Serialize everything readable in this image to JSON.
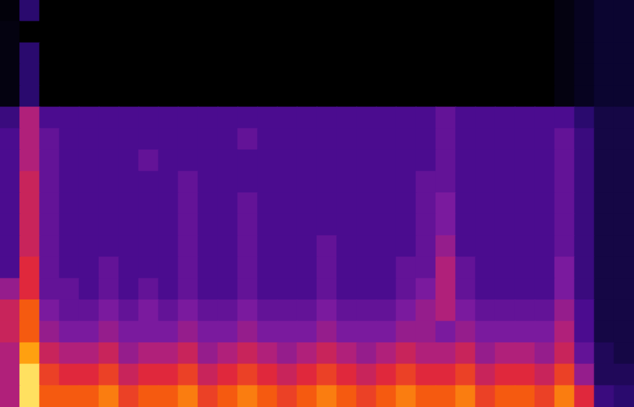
{
  "chart_data": {
    "type": "heatmap",
    "tick_labels": false,
    "color_range": [
      0,
      10
    ],
    "cells": [
      [
        0.3,
        3,
        0,
        0,
        0,
        0,
        0,
        0,
        0,
        0,
        0,
        0,
        0,
        0,
        0,
        0,
        0,
        0,
        0,
        0,
        0,
        0,
        0,
        0,
        0,
        0,
        0,
        0,
        0.5,
        1,
        1.5,
        1.5
      ],
      [
        0.5,
        0,
        0,
        0,
        0,
        0,
        0,
        0,
        0,
        0,
        0,
        0,
        0,
        0,
        0,
        0,
        0,
        0,
        0,
        0,
        0,
        0,
        0,
        0,
        0,
        0,
        0,
        0,
        0.5,
        1,
        1.5,
        1.5
      ],
      [
        0.5,
        3,
        0,
        0,
        0,
        0,
        0,
        0,
        0,
        0,
        0,
        0,
        0,
        0,
        0,
        0,
        0,
        0,
        0,
        0,
        0,
        0,
        0,
        0,
        0,
        0,
        0,
        0,
        0.5,
        1,
        1.5,
        1.5
      ],
      [
        0.5,
        3,
        0,
        0,
        0,
        0,
        0,
        0,
        0,
        0,
        0,
        0,
        0,
        0,
        0,
        0,
        0,
        0,
        0,
        0,
        0,
        0,
        0,
        0,
        0,
        0,
        0,
        0,
        0.5,
        1,
        1.5,
        1.5
      ],
      [
        0.5,
        3,
        0,
        0,
        0,
        0,
        0,
        0,
        0,
        0,
        0,
        0,
        0,
        0,
        0,
        0,
        0,
        0,
        0,
        0,
        0,
        0,
        0,
        0,
        0,
        0,
        0,
        0,
        0.5,
        1,
        1.5,
        1.5
      ],
      [
        3.5,
        6,
        4,
        4,
        4,
        4,
        4,
        4,
        4,
        4,
        4,
        4,
        4,
        4,
        4,
        4,
        4,
        4,
        4,
        4,
        4,
        4,
        4.5,
        4,
        4,
        4,
        4,
        4,
        4,
        3,
        2,
        2
      ],
      [
        4,
        6,
        4.5,
        4,
        4,
        4,
        4,
        4,
        4,
        4,
        4,
        4,
        4.5,
        4,
        4,
        4,
        4,
        4,
        4,
        4,
        4,
        4,
        4.5,
        4,
        4,
        4,
        4,
        4,
        4.5,
        3.5,
        2,
        2
      ],
      [
        4,
        6,
        4.5,
        4,
        4,
        4,
        4,
        4.5,
        4,
        4,
        4,
        4,
        4,
        4,
        4,
        4,
        4,
        4,
        4,
        4,
        4,
        4,
        4.5,
        4,
        4,
        4,
        4,
        4,
        4.5,
        3.5,
        2,
        2
      ],
      [
        4,
        6.5,
        4.5,
        4,
        4,
        4,
        4,
        4,
        4,
        4.5,
        4,
        4,
        4,
        4,
        4,
        4,
        4,
        4,
        4,
        4,
        4,
        4.5,
        4.5,
        4,
        4,
        4,
        4,
        4,
        4.5,
        3.5,
        2,
        2
      ],
      [
        4,
        6.5,
        4.5,
        4,
        4,
        4,
        4,
        4,
        4,
        4.5,
        4,
        4,
        4.5,
        4,
        4,
        4,
        4,
        4,
        4,
        4,
        4,
        4.5,
        5,
        4,
        4,
        4,
        4,
        4,
        4.5,
        3.5,
        2,
        2
      ],
      [
        4,
        6.5,
        4.5,
        4,
        4,
        4,
        4,
        4,
        4,
        4.5,
        4,
        4,
        4.5,
        4,
        4,
        4,
        4,
        4,
        4,
        4,
        4,
        4.5,
        5,
        4,
        4,
        4,
        4,
        4,
        4.5,
        3.5,
        2,
        2
      ],
      [
        4,
        6.5,
        4.5,
        4,
        4,
        4,
        4,
        4,
        4,
        4.5,
        4,
        4,
        4.5,
        4,
        4,
        4,
        4.5,
        4,
        4,
        4,
        4,
        4.5,
        5.5,
        4,
        4,
        4,
        4,
        4,
        4.5,
        3.5,
        2,
        2
      ],
      [
        4,
        7,
        4.5,
        4,
        4,
        4.5,
        4,
        4,
        4,
        4.5,
        4,
        4,
        4.5,
        4,
        4,
        4,
        4.5,
        4,
        4,
        4,
        4.5,
        4.5,
        6,
        4.5,
        4,
        4,
        4,
        4,
        5,
        3.5,
        2,
        2
      ],
      [
        5.5,
        7,
        4.5,
        4.5,
        4,
        4.5,
        4,
        4.5,
        4,
        4.5,
        4,
        4,
        4.5,
        4,
        4,
        4,
        4.5,
        4,
        4,
        4,
        4.5,
        5,
        6,
        4.5,
        4,
        4,
        4,
        4,
        5,
        3.5,
        2,
        2
      ],
      [
        6.5,
        8,
        5,
        4.5,
        4.5,
        5,
        4.5,
        5,
        4.5,
        5,
        4.5,
        4.5,
        5,
        4.5,
        4.5,
        4.5,
        5,
        4.5,
        4.5,
        4.5,
        5,
        5.5,
        6,
        5,
        4.5,
        4.5,
        4.5,
        4.5,
        5.5,
        4,
        2,
        2
      ],
      [
        6.5,
        8,
        5.5,
        5,
        5,
        5.5,
        5,
        5,
        5,
        5.5,
        5,
        5,
        5.5,
        5,
        5,
        5,
        5.5,
        5,
        5,
        5,
        5.5,
        5.5,
        5,
        5.5,
        5,
        5,
        5,
        5,
        6,
        4,
        2,
        2
      ],
      [
        6,
        9,
        6.5,
        6,
        6,
        6.5,
        5.5,
        6,
        6,
        6.5,
        5.5,
        6,
        6.5,
        6,
        5.5,
        6,
        6.5,
        6,
        5.5,
        6,
        6.5,
        6,
        6,
        6.5,
        5.5,
        6,
        6,
        5.5,
        6.5,
        4.5,
        2.5,
        2
      ],
      [
        6,
        10,
        7.5,
        7,
        7,
        7.5,
        6.5,
        7,
        7,
        7.5,
        6.5,
        7,
        7.5,
        7,
        6.5,
        7,
        7.5,
        7,
        6.5,
        7,
        7.5,
        7,
        7,
        7.5,
        6.5,
        7,
        7,
        6.5,
        7.5,
        5.5,
        2.5,
        2.5
      ],
      [
        6,
        10,
        8,
        8,
        8,
        8.5,
        7.5,
        8,
        8,
        8.5,
        7.5,
        8,
        8.5,
        8,
        7.5,
        8,
        8.5,
        8,
        7.5,
        8,
        8.5,
        8,
        8,
        8.5,
        7.5,
        8,
        8,
        7.5,
        8.5,
        7,
        3.5,
        3
      ]
    ]
  }
}
